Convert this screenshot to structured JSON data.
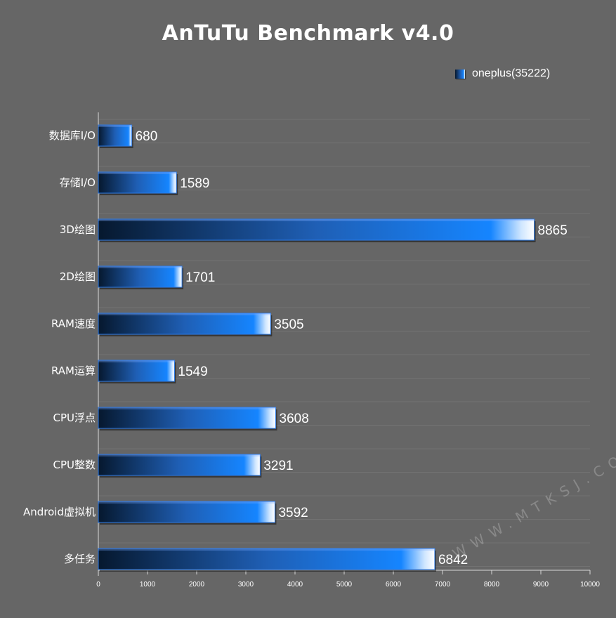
{
  "chart_data": {
    "type": "bar",
    "orientation": "horizontal",
    "title": "AnTuTu Benchmark v4.0",
    "categories": [
      "数据库I/O",
      "存储I/O",
      "3D绘图",
      "2D绘图",
      "RAM速度",
      "RAM运算",
      "CPU浮点",
      "CPU整数",
      "Android虚拟机",
      "多任务"
    ],
    "series": [
      {
        "name": "oneplus(35222)",
        "values": [
          680,
          1589,
          8865,
          1701,
          3505,
          1549,
          3608,
          3291,
          3592,
          6842
        ]
      }
    ],
    "xlim": [
      0,
      10000
    ],
    "xticks": [
      0,
      1000,
      2000,
      3000,
      4000,
      5000,
      6000,
      7000,
      8000,
      9000,
      10000
    ],
    "grid": true,
    "legend": "top-right",
    "data_labels": true
  },
  "colors": {
    "background": "#666666",
    "grid": "#737373",
    "bar_dark": "#06182e",
    "bar_mid": "#1f5fb5",
    "bar_bright": "#1585ff",
    "bar_highlight": "#ffffff",
    "text": "#ffffff"
  },
  "watermark": "WWW.MTKSJ.COM"
}
